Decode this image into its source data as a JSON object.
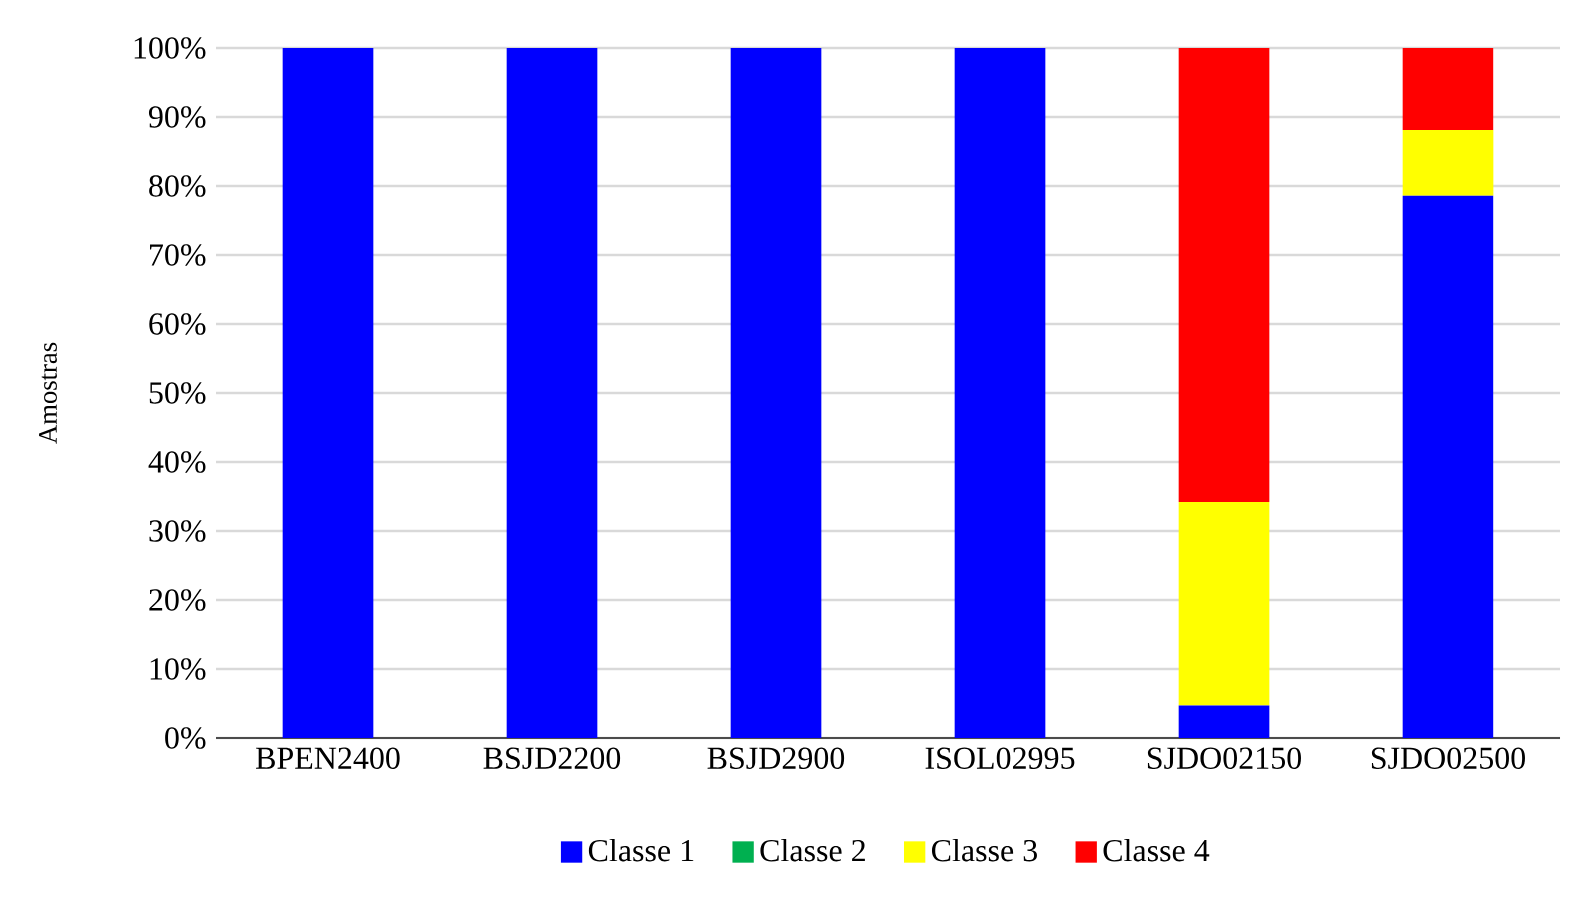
{
  "chart_data": {
    "type": "bar",
    "stacked": true,
    "ylabel": "Amostras",
    "categories": [
      "BPEN2400",
      "BSJD2200",
      "BSJD2900",
      "ISOL02995",
      "SJDO02150",
      "SJDO02500"
    ],
    "series": [
      {
        "name": "Classe 1",
        "color": "#0000ff",
        "values": [
          100,
          100,
          100,
          100,
          4.7,
          78.6
        ]
      },
      {
        "name": "Classe 2",
        "color": "#00b050",
        "values": [
          0,
          0,
          0,
          0,
          0,
          0
        ]
      },
      {
        "name": "Classe 3",
        "color": "#ffff00",
        "values": [
          0,
          0,
          0,
          0,
          29.5,
          9.5
        ]
      },
      {
        "name": "Classe 4",
        "color": "#ff0000",
        "values": [
          0,
          0,
          0,
          0,
          65.8,
          11.9
        ]
      }
    ],
    "ylim": [
      0,
      100
    ],
    "yticks": [
      {
        "value": 0,
        "label": "0%"
      },
      {
        "value": 10,
        "label": "10%"
      },
      {
        "value": 20,
        "label": "20%"
      },
      {
        "value": 30,
        "label": "30%"
      },
      {
        "value": 40,
        "label": "40%"
      },
      {
        "value": 50,
        "label": "50%"
      },
      {
        "value": 60,
        "label": "60%"
      },
      {
        "value": 70,
        "label": "70%"
      },
      {
        "value": 80,
        "label": "80%"
      },
      {
        "value": 90,
        "label": "90%"
      },
      {
        "value": 100,
        "label": "100%"
      }
    ],
    "grid": "y",
    "legend": "bottom"
  }
}
